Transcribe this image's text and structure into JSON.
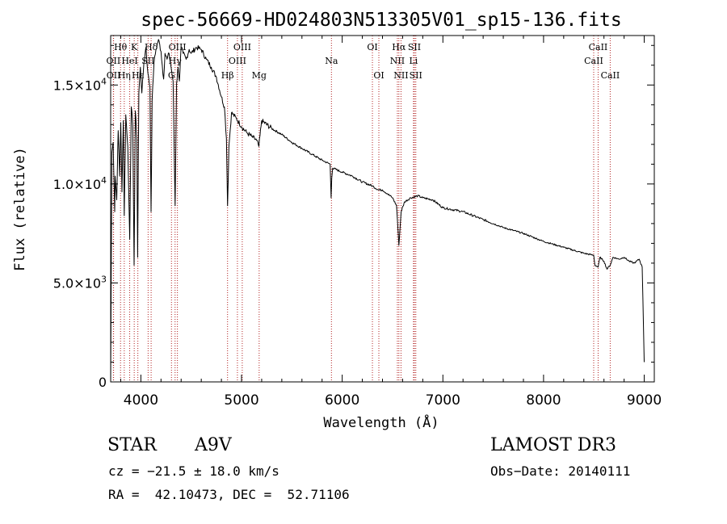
{
  "chart_data": {
    "type": "line",
    "title": "spec-56669-HD024803N513305V01_sp15-136.fits",
    "xlabel": "Wavelength (Å)",
    "ylabel": "Flux (relative)",
    "xlim": [
      3700,
      9100
    ],
    "ylim": [
      0,
      17500
    ],
    "x_ticks": [
      4000,
      5000,
      6000,
      7000,
      8000,
      9000
    ],
    "x_tick_labels": [
      "4000",
      "5000",
      "6000",
      "7000",
      "8000",
      "9000"
    ],
    "y_ticks": [
      0,
      5000,
      10000,
      15000
    ],
    "y_tick_labels": [
      {
        "mant": "0",
        "exp": ""
      },
      {
        "mant": "5.0×10",
        "exp": "3"
      },
      {
        "mant": "1.0×10",
        "exp": "4"
      },
      {
        "mant": "1.5×10",
        "exp": "4"
      }
    ],
    "spectrum": {
      "x": [
        3700,
        3712,
        3725,
        3740,
        3745,
        3760,
        3775,
        3790,
        3800,
        3812,
        3826,
        3835,
        3850,
        3870,
        3889,
        3905,
        3920,
        3933,
        3945,
        3960,
        3968,
        3980,
        3995,
        4010,
        4030,
        4050,
        4070,
        4090,
        4101,
        4112,
        4130,
        4150,
        4175,
        4200,
        4226,
        4240,
        4260,
        4280,
        4300,
        4320,
        4340,
        4355,
        4370,
        4383,
        4400,
        4420,
        4450,
        4480,
        4500,
        4550,
        4600,
        4650,
        4700,
        4750,
        4800,
        4830,
        4850,
        4861,
        4875,
        4900,
        4950,
        5000,
        5050,
        5100,
        5150,
        5172,
        5200,
        5300,
        5400,
        5500,
        5600,
        5700,
        5800,
        5880,
        5890,
        5896,
        5905,
        6000,
        6100,
        6200,
        6300,
        6360,
        6400,
        6450,
        6500,
        6540,
        6563,
        6585,
        6620,
        6680,
        6750,
        6800,
        6900,
        7000,
        7200,
        7400,
        7600,
        7800,
        8000,
        8200,
        8400,
        8498,
        8510,
        8542,
        8560,
        8600,
        8630,
        8662,
        8690,
        8750,
        8800,
        8850,
        8900,
        8950,
        8980,
        9000
      ],
      "y": [
        0,
        11600,
        12100,
        8600,
        10400,
        9200,
        12700,
        10400,
        13100,
        9600,
        13200,
        8400,
        13500,
        11900,
        7200,
        13900,
        12900,
        5900,
        13700,
        12300,
        6300,
        14600,
        15900,
        14600,
        16100,
        16900,
        15600,
        14900,
        8600,
        14200,
        16100,
        16800,
        17300,
        16700,
        15300,
        16600,
        16300,
        16600,
        15900,
        15200,
        8900,
        15100,
        15900,
        15200,
        16900,
        16600,
        16300,
        16800,
        16600,
        16900,
        16800,
        16300,
        15900,
        15400,
        14400,
        13900,
        12300,
        8900,
        11900,
        13600,
        13300,
        12900,
        12600,
        12400,
        12200,
        11900,
        13200,
        12800,
        12500,
        12100,
        11800,
        11500,
        11200,
        11000,
        9300,
        10300,
        10800,
        10600,
        10400,
        10100,
        9900,
        9700,
        9700,
        9500,
        9300,
        8900,
        6900,
        8600,
        9100,
        9300,
        9400,
        9300,
        9200,
        8800,
        8600,
        8200,
        7800,
        7500,
        7100,
        6800,
        6500,
        6400,
        5900,
        5800,
        6300,
        6100,
        5700,
        5900,
        6300,
        6200,
        6300,
        6100,
        6000,
        6200,
        5800,
        1000
      ]
    },
    "lines": [
      {
        "label": "Hθ",
        "wl": 3798,
        "row": 1
      },
      {
        "label": "OII",
        "wl": 3727,
        "row": 2
      },
      {
        "label": "OII",
        "wl": 3729,
        "row": 3
      },
      {
        "label": "Hη",
        "wl": 3835,
        "row": 3
      },
      {
        "label": "K",
        "wl": 3934,
        "row": 1
      },
      {
        "label": "HeI",
        "wl": 3889,
        "row": 2
      },
      {
        "label": "Hε",
        "wl": 3970,
        "row": 3
      },
      {
        "label": "Hδ",
        "wl": 4102,
        "row": 1
      },
      {
        "label": "SII",
        "wl": 4072,
        "row": 2
      },
      {
        "label": "OIII",
        "wl": 4363,
        "row": 1
      },
      {
        "label": "Hγ",
        "wl": 4340,
        "row": 2
      },
      {
        "label": "G",
        "wl": 4304,
        "row": 3
      },
      {
        "label": "Hβ",
        "wl": 4861,
        "row": 3
      },
      {
        "label": "OIII",
        "wl": 5007,
        "row": 1
      },
      {
        "label": "OIII",
        "wl": 4959,
        "row": 2
      },
      {
        "label": "Mg",
        "wl": 5175,
        "row": 3
      },
      {
        "label": "Na",
        "wl": 5893,
        "row": 2
      },
      {
        "label": "OI",
        "wl": 6300,
        "row": 1
      },
      {
        "label": "OI",
        "wl": 6364,
        "row": 3
      },
      {
        "label": "Hα",
        "wl": 6563,
        "row": 1
      },
      {
        "label": "NII",
        "wl": 6548,
        "row": 2
      },
      {
        "label": "NII",
        "wl": 6584,
        "row": 3
      },
      {
        "label": "SII",
        "wl": 6717,
        "row": 1
      },
      {
        "label": "Li",
        "wl": 6708,
        "row": 2
      },
      {
        "label": "SII",
        "wl": 6731,
        "row": 3
      },
      {
        "label": "CaII",
        "wl": 8542,
        "row": 1
      },
      {
        "label": "CaII",
        "wl": 8498,
        "row": 2
      },
      {
        "label": "CaII",
        "wl": 8662,
        "row": 3
      }
    ]
  },
  "info": {
    "object_type": "STAR",
    "subclass": "A9V",
    "survey": "LAMOST DR3",
    "cz": "cz = −21.5 ± 18.0 km/s",
    "obs_date": "Obs−Date: 20140111",
    "radec": "RA =  42.10473, DEC =  52.71106"
  }
}
